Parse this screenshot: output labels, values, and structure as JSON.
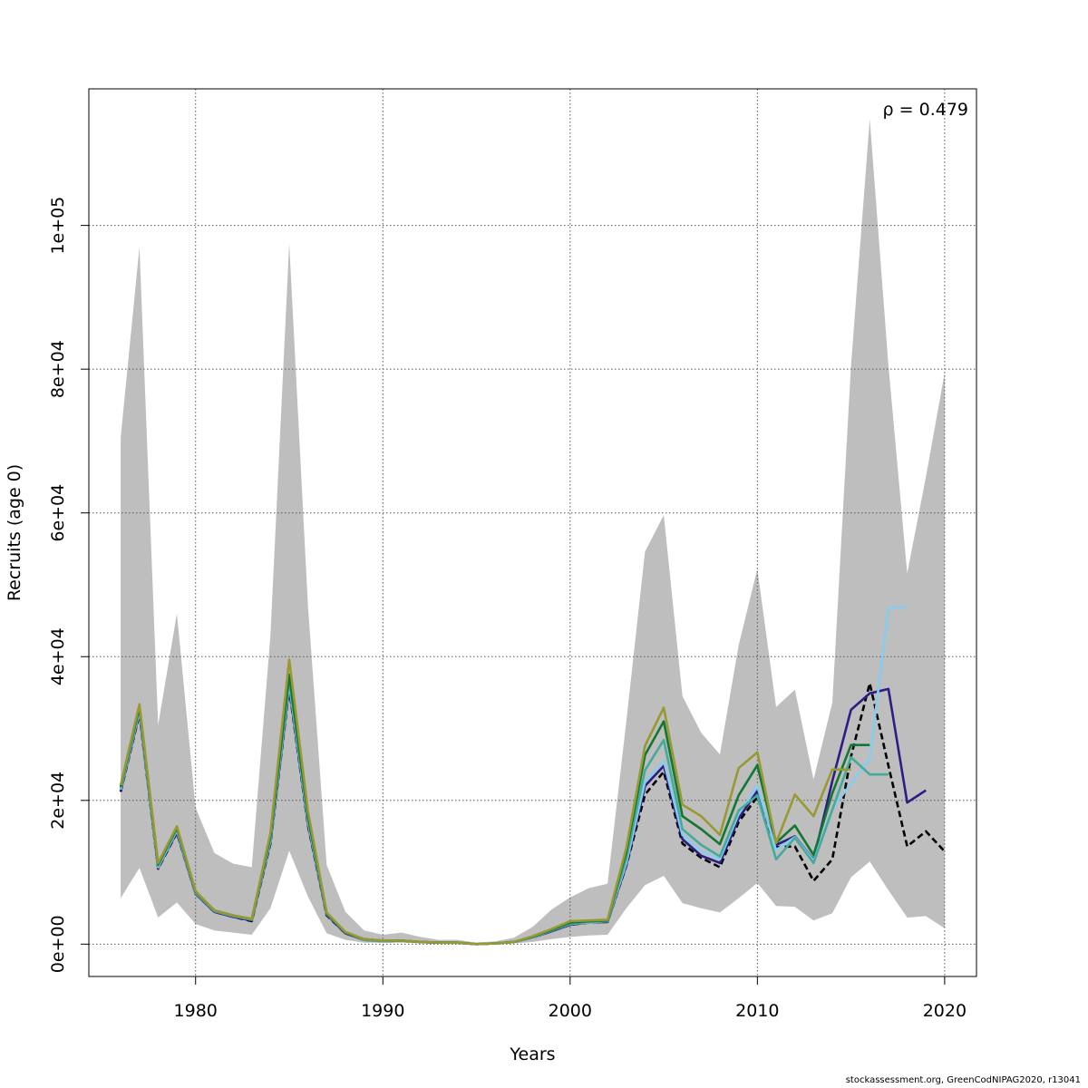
{
  "chart_data": {
    "type": "line",
    "xlabel": "Years",
    "ylabel": "Recruits (age 0)",
    "xlim": [
      1974.3,
      2021.7
    ],
    "ylim": [
      -4500,
      119000
    ],
    "x_ticks": [
      1980,
      1990,
      2000,
      2010,
      2020
    ],
    "x_tick_labels": [
      "1980",
      "1990",
      "2000",
      "2010",
      "2020"
    ],
    "y_ticks": [
      0,
      20000,
      40000,
      60000,
      80000,
      100000
    ],
    "y_tick_labels": [
      "0e+00",
      "2e+04",
      "4e+04",
      "6e+04",
      "8e+04",
      "1e+05"
    ],
    "grid": true,
    "annotation": "ρ = 0.479",
    "band_color": "#bebebe",
    "band": {
      "x": [
        1976,
        1977,
        1978,
        1979,
        1980,
        1981,
        1982,
        1983,
        1984,
        1985,
        1986,
        1987,
        1988,
        1989,
        1990,
        1991,
        1992,
        1993,
        1994,
        1995,
        1996,
        1997,
        1998,
        1999,
        2000,
        2001,
        2002,
        2003,
        2004,
        2005,
        2006,
        2007,
        2008,
        2009,
        2010,
        2011,
        2012,
        2013,
        2014,
        2015,
        2016,
        2017,
        2018,
        2019,
        2020
      ],
      "upper": [
        70500,
        97000,
        30500,
        46000,
        19000,
        12700,
        11200,
        10700,
        43000,
        97500,
        47000,
        11000,
        4500,
        1900,
        1300,
        1600,
        1000,
        600,
        600,
        200,
        400,
        900,
        2400,
        4800,
        6500,
        7800,
        8400,
        31000,
        54600,
        59700,
        34500,
        29400,
        26400,
        41600,
        52200,
        33000,
        35400,
        22900,
        33600,
        80500,
        114800,
        80500,
        51600,
        65000,
        79500
      ],
      "lower": [
        6400,
        10600,
        3700,
        5800,
        2800,
        1900,
        1600,
        1300,
        5000,
        13000,
        6600,
        1500,
        600,
        200,
        200,
        200,
        100,
        0,
        0,
        0,
        0,
        100,
        300,
        700,
        1000,
        1200,
        1300,
        5000,
        8200,
        9500,
        5700,
        5000,
        4400,
        6400,
        8500,
        5300,
        5200,
        3300,
        4300,
        9300,
        11500,
        7500,
        3700,
        3900,
        2200
      ]
    },
    "series": [
      {
        "color": "#000000",
        "dashed": true,
        "x": [
          1976,
          1977,
          1978,
          1979,
          1980,
          1981,
          1982,
          1983,
          1984,
          1985,
          1986,
          1987,
          1988,
          1989,
          1990,
          1991,
          1992,
          1993,
          1994,
          1995,
          1996,
          1997,
          1998,
          1999,
          2000,
          2001,
          2002,
          2003,
          2004,
          2005,
          2006,
          2007,
          2008,
          2009,
          2010,
          2011,
          2012,
          2013,
          2014,
          2015,
          2016,
          2017,
          2018,
          2019,
          2020
        ],
        "y": [
          21200,
          32000,
          10500,
          15500,
          7000,
          4500,
          3800,
          3200,
          14000,
          35500,
          16500,
          4000,
          1500,
          600,
          400,
          500,
          300,
          200,
          200,
          0,
          100,
          300,
          900,
          1800,
          2700,
          3000,
          3100,
          10900,
          20800,
          24000,
          14000,
          12000,
          10700,
          17000,
          20500,
          13500,
          13600,
          8800,
          11800,
          26100,
          36300,
          24800,
          13600,
          15700,
          12900
        ]
      },
      {
        "color": "#2c1c84",
        "dashed": false,
        "x": [
          1976,
          1977,
          1978,
          1979,
          1980,
          1981,
          1982,
          1983,
          1984,
          1985,
          1986,
          1987,
          1988,
          1989,
          1990,
          1991,
          1992,
          1993,
          1994,
          1995,
          1996,
          1997,
          1998,
          1999,
          2000,
          2001,
          2002,
          2003,
          2004,
          2005,
          2006,
          2007,
          2008,
          2009,
          2010,
          2011,
          2012,
          2013,
          2014,
          2015,
          2016,
          2017,
          2018,
          2019
        ],
        "y": [
          21300,
          32200,
          10600,
          15600,
          7000,
          4500,
          3800,
          3300,
          14200,
          35800,
          16700,
          4100,
          1500,
          600,
          400,
          500,
          300,
          200,
          200,
          0,
          100,
          300,
          900,
          1800,
          2700,
          3000,
          3100,
          11000,
          22000,
          24800,
          14600,
          12300,
          11300,
          17500,
          21300,
          13800,
          15000,
          11700,
          22700,
          32600,
          34900,
          35500,
          19700,
          21400
        ]
      },
      {
        "color": "#88ccee",
        "dashed": false,
        "x": [
          1976,
          1977,
          1978,
          1979,
          1980,
          1981,
          1982,
          1983,
          1984,
          1985,
          1986,
          1987,
          1988,
          1989,
          1990,
          1991,
          1992,
          1993,
          1994,
          1995,
          1996,
          1997,
          1998,
          1999,
          2000,
          2001,
          2002,
          2003,
          2004,
          2005,
          2006,
          2007,
          2008,
          2009,
          2010,
          2011,
          2012,
          2013,
          2014,
          2015,
          2016,
          2017,
          2018
        ],
        "y": [
          21500,
          32400,
          10700,
          15800,
          7100,
          4600,
          3900,
          3400,
          14400,
          36200,
          17000,
          4200,
          1600,
          600,
          400,
          500,
          300,
          200,
          200,
          0,
          100,
          300,
          900,
          1900,
          2800,
          3000,
          3200,
          11300,
          22600,
          25500,
          15200,
          12900,
          11800,
          18100,
          22000,
          13100,
          14900,
          11600,
          18900,
          22300,
          25800,
          46800,
          47000
        ]
      },
      {
        "color": "#44aa99",
        "dashed": false,
        "x": [
          1976,
          1977,
          1978,
          1979,
          1980,
          1981,
          1982,
          1983,
          1984,
          1985,
          1986,
          1987,
          1988,
          1989,
          1990,
          1991,
          1992,
          1993,
          1994,
          1995,
          1996,
          1997,
          1998,
          1999,
          2000,
          2001,
          2002,
          2003,
          2004,
          2005,
          2006,
          2007,
          2008,
          2009,
          2010,
          2011,
          2012,
          2013,
          2014,
          2015,
          2016,
          2017
        ],
        "y": [
          21700,
          32700,
          10900,
          16000,
          7200,
          4600,
          3900,
          3400,
          14700,
          36700,
          17400,
          4200,
          1600,
          600,
          400,
          500,
          300,
          200,
          200,
          0,
          100,
          300,
          1000,
          1900,
          2800,
          3100,
          3200,
          11900,
          24200,
          28400,
          16000,
          13800,
          12200,
          18600,
          20700,
          11800,
          14800,
          11300,
          18700,
          26000,
          23600,
          23600
        ]
      },
      {
        "color": "#117733",
        "dashed": false,
        "x": [
          1976,
          1977,
          1978,
          1979,
          1980,
          1981,
          1982,
          1983,
          1984,
          1985,
          1986,
          1987,
          1988,
          1989,
          1990,
          1991,
          1992,
          1993,
          1994,
          1995,
          1996,
          1997,
          1998,
          1999,
          2000,
          2001,
          2002,
          2003,
          2004,
          2005,
          2006,
          2007,
          2008,
          2009,
          2010,
          2011,
          2012,
          2013,
          2014,
          2015,
          2016
        ],
        "y": [
          21900,
          33000,
          11100,
          16200,
          7300,
          4700,
          4000,
          3500,
          15000,
          37500,
          17800,
          4300,
          1600,
          700,
          500,
          500,
          300,
          200,
          200,
          0,
          100,
          300,
          1000,
          2000,
          3000,
          3200,
          3300,
          12800,
          26300,
          31000,
          17800,
          16000,
          13900,
          20700,
          24900,
          14100,
          16500,
          12400,
          21000,
          27700,
          27700
        ]
      },
      {
        "color": "#999933",
        "dashed": false,
        "x": [
          1976,
          1977,
          1978,
          1979,
          1980,
          1981,
          1982,
          1983,
          1984,
          1985,
          1986,
          1987,
          1988,
          1989,
          1990,
          1991,
          1992,
          1993,
          1994,
          1995,
          1996,
          1997,
          1998,
          1999,
          2000,
          2001,
          2002,
          2003,
          2004,
          2005,
          2006,
          2007,
          2008,
          2009,
          2010,
          2011,
          2012,
          2013,
          2014,
          2015
        ],
        "y": [
          22100,
          33400,
          11300,
          16400,
          7400,
          4700,
          4000,
          3500,
          15500,
          39600,
          18500,
          4400,
          1700,
          700,
          500,
          500,
          300,
          200,
          200,
          0,
          100,
          300,
          1100,
          2100,
          3200,
          3300,
          3400,
          13400,
          27600,
          32900,
          19400,
          17800,
          15200,
          24500,
          26700,
          14100,
          20800,
          17800,
          24300,
          24300
        ]
      }
    ]
  },
  "footer": {
    "credit": "stockassessment.org, GreenCodNIPAG2020, r13041"
  }
}
